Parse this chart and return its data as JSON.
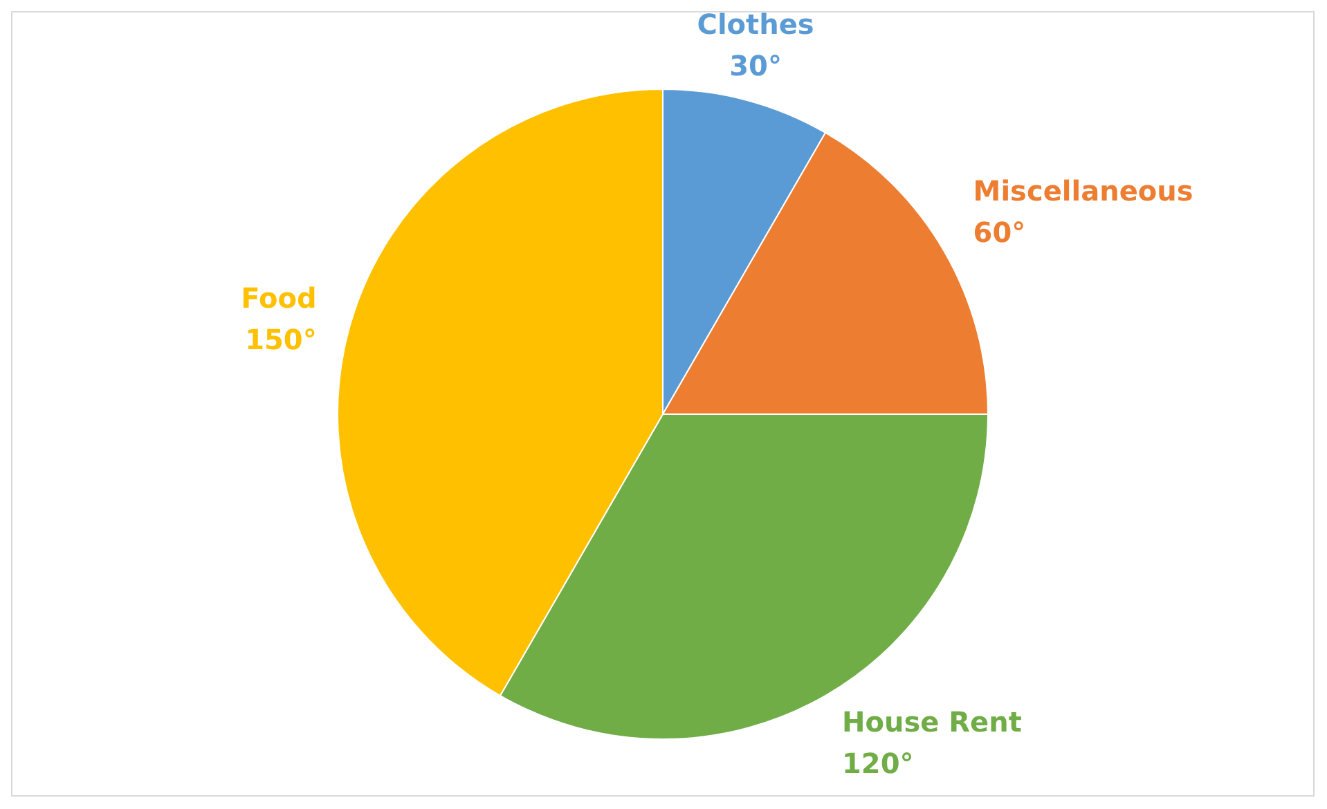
{
  "chart_data": {
    "type": "pie",
    "categories": [
      "Clothes",
      "Miscellaneous",
      "House Rent",
      "Food"
    ],
    "values": [
      30,
      60,
      120,
      150
    ],
    "colors": [
      "#5b9bd5",
      "#ed7d31",
      "#70ad47",
      "#ffc000"
    ],
    "value_labels": [
      "30°",
      "60°",
      "120°",
      "150°"
    ],
    "legend": false
  }
}
